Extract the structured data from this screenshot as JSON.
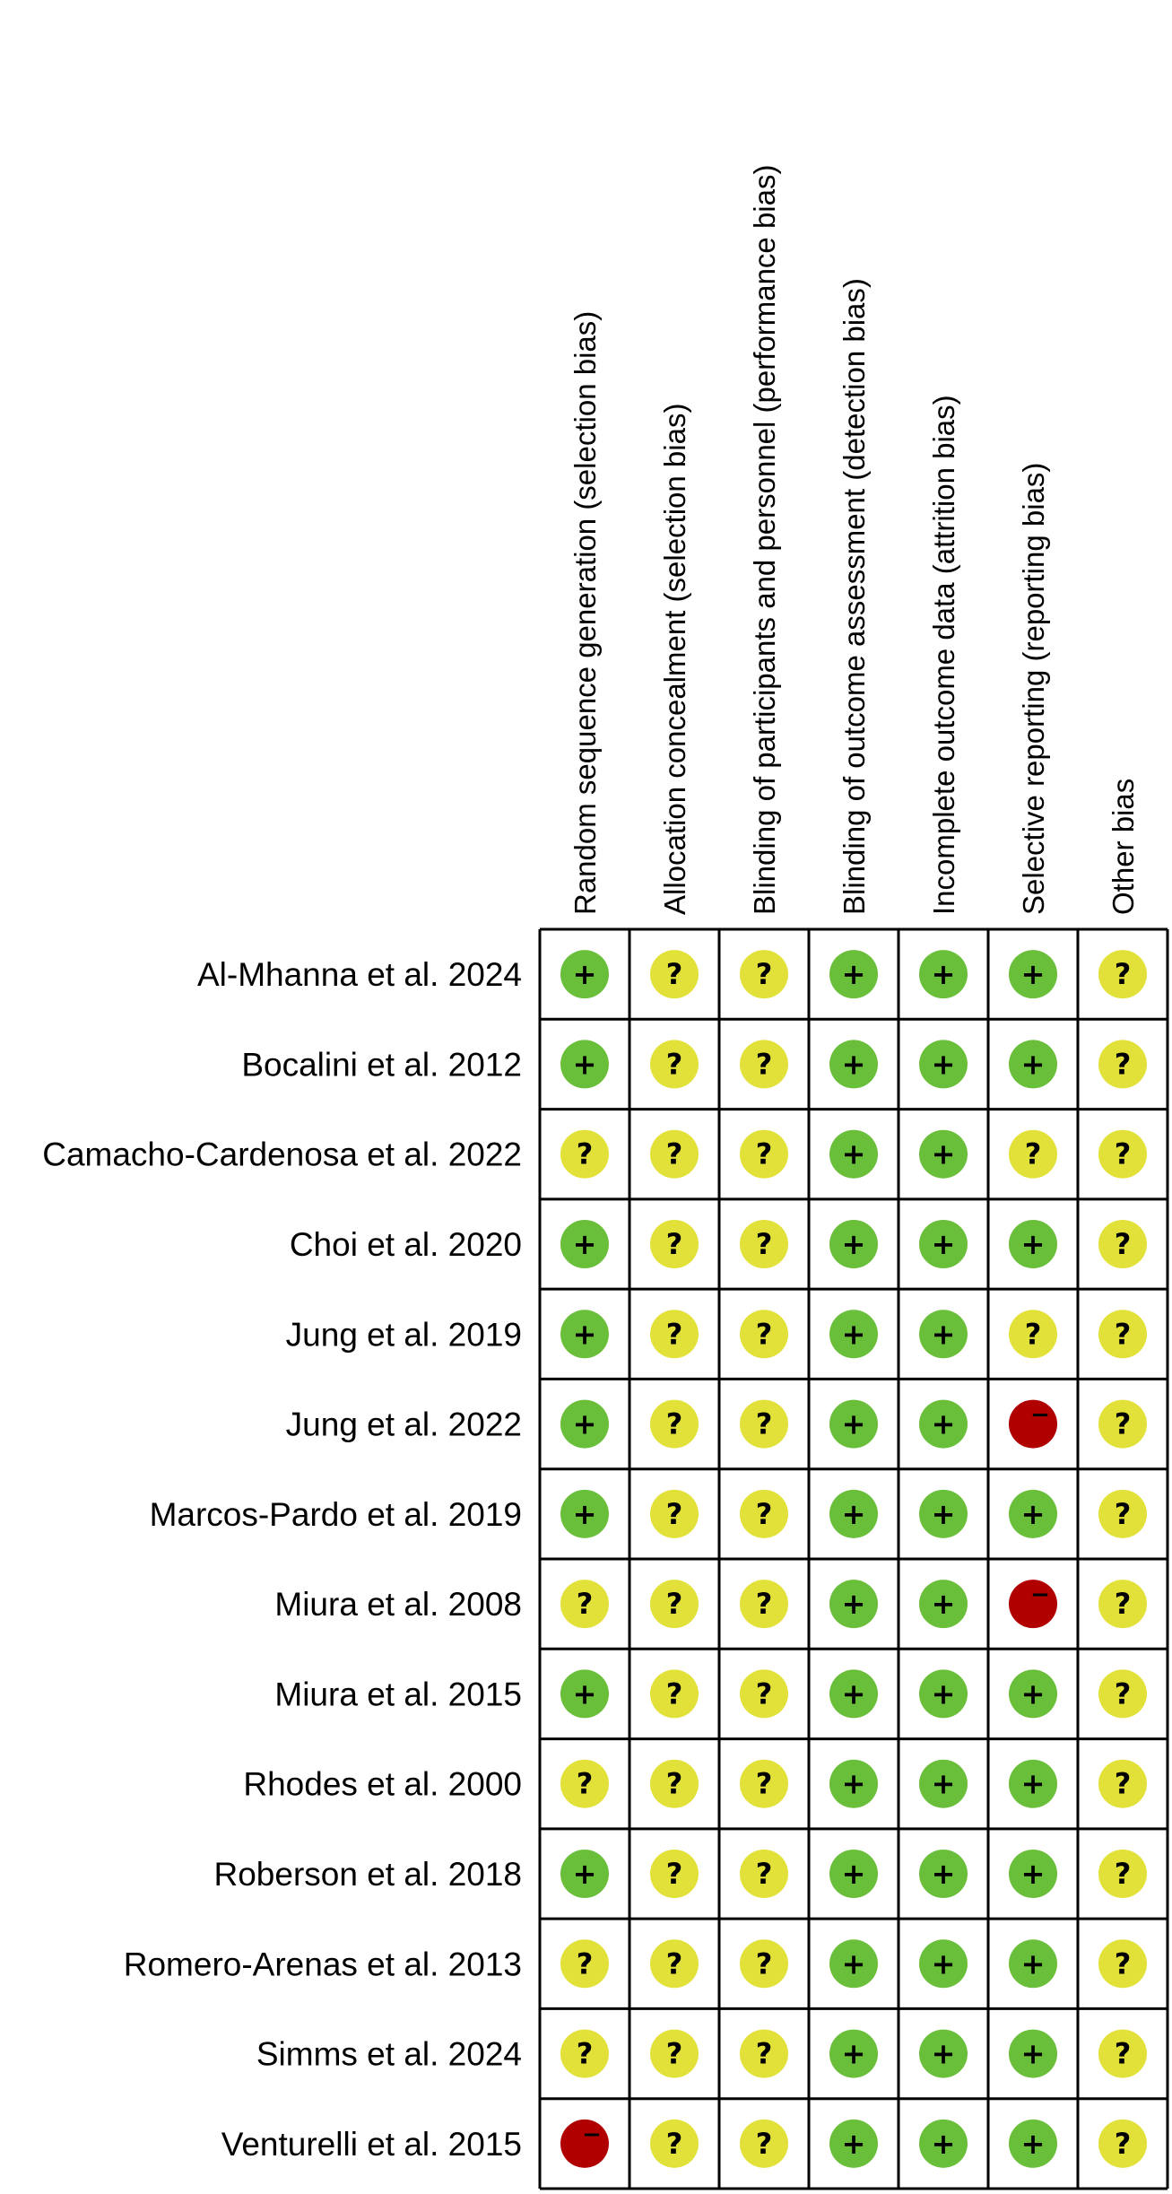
{
  "chart_data": {
    "type": "table",
    "columns": [
      "Random sequence generation (selection bias)",
      "Allocation concealment (selection bias)",
      "Blinding of participants and personnel (performance bias)",
      "Blinding of outcome assessment (detection bias)",
      "Incomplete outcome data (attrition bias)",
      "Selective reporting (reporting bias)",
      "Other bias"
    ],
    "rows": [
      {
        "study": "Al-Mhanna et al. 2024",
        "judgements": [
          "low",
          "unclear",
          "unclear",
          "low",
          "low",
          "low",
          "unclear"
        ]
      },
      {
        "study": "Bocalini et al. 2012",
        "judgements": [
          "low",
          "unclear",
          "unclear",
          "low",
          "low",
          "low",
          "unclear"
        ]
      },
      {
        "study": "Camacho-Cardenosa et al. 2022",
        "judgements": [
          "unclear",
          "unclear",
          "unclear",
          "low",
          "low",
          "unclear",
          "unclear"
        ]
      },
      {
        "study": "Choi et al. 2020",
        "judgements": [
          "low",
          "unclear",
          "unclear",
          "low",
          "low",
          "low",
          "unclear"
        ]
      },
      {
        "study": "Jung et al. 2019",
        "judgements": [
          "low",
          "unclear",
          "unclear",
          "low",
          "low",
          "unclear",
          "unclear"
        ]
      },
      {
        "study": "Jung et al. 2022",
        "judgements": [
          "low",
          "unclear",
          "unclear",
          "low",
          "low",
          "high",
          "unclear"
        ]
      },
      {
        "study": "Marcos-Pardo et al. 2019",
        "judgements": [
          "low",
          "unclear",
          "unclear",
          "low",
          "low",
          "low",
          "unclear"
        ]
      },
      {
        "study": "Miura et al. 2008",
        "judgements": [
          "unclear",
          "unclear",
          "unclear",
          "low",
          "low",
          "high",
          "unclear"
        ]
      },
      {
        "study": "Miura et al. 2015",
        "judgements": [
          "low",
          "unclear",
          "unclear",
          "low",
          "low",
          "low",
          "unclear"
        ]
      },
      {
        "study": "Rhodes et al. 2000",
        "judgements": [
          "unclear",
          "unclear",
          "unclear",
          "low",
          "low",
          "low",
          "unclear"
        ]
      },
      {
        "study": "Roberson et al. 2018",
        "judgements": [
          "low",
          "unclear",
          "unclear",
          "low",
          "low",
          "low",
          "unclear"
        ]
      },
      {
        "study": "Romero-Arenas et al. 2013",
        "judgements": [
          "unclear",
          "unclear",
          "unclear",
          "low",
          "low",
          "low",
          "unclear"
        ]
      },
      {
        "study": "Simms et al. 2024",
        "judgements": [
          "unclear",
          "unclear",
          "unclear",
          "low",
          "low",
          "low",
          "unclear"
        ]
      },
      {
        "study": "Venturelli et al. 2015",
        "judgements": [
          "high",
          "unclear",
          "unclear",
          "low",
          "low",
          "low",
          "unclear"
        ]
      }
    ],
    "legend": {
      "low": {
        "symbol": "+",
        "color": "#6abf3a"
      },
      "unclear": {
        "symbol": "?",
        "color": "#e2e13a"
      },
      "high": {
        "symbol": "−",
        "color": "#b00000"
      }
    }
  }
}
